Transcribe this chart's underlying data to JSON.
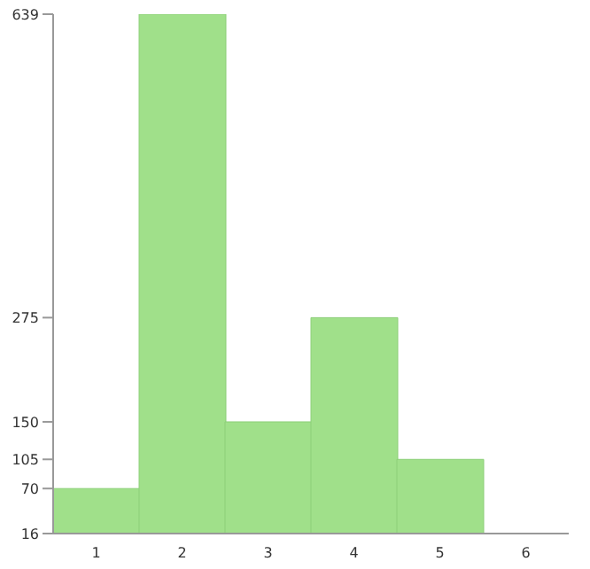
{
  "chart_data": {
    "type": "bar",
    "categories": [
      "1",
      "2",
      "3",
      "4",
      "5",
      "6"
    ],
    "values": [
      70,
      639,
      150,
      275,
      105,
      16
    ],
    "color": "#a0e08a",
    "ylim": [
      16,
      639
    ],
    "yticks": [
      16,
      70,
      105,
      150,
      275,
      639
    ],
    "grid": false
  }
}
